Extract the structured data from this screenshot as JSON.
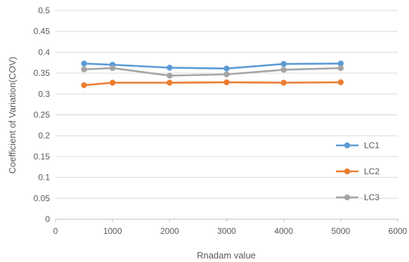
{
  "chart_data": {
    "type": "scatter",
    "title": "",
    "xlabel": "Rnadam value",
    "ylabel": "Coefficient of Variation(COV)",
    "xlim": [
      0,
      6000
    ],
    "ylim": [
      0,
      0.5
    ],
    "x_ticks": [
      "0",
      "1000",
      "2000",
      "3000",
      "4000",
      "5000",
      "6000"
    ],
    "y_ticks": [
      "0",
      "0.05",
      "0.1",
      "0.15",
      "0.2",
      "0.25",
      "0.3",
      "0.35",
      "0.4",
      "0.45",
      "0.5"
    ],
    "grid": "horizontal",
    "legend_position": "right",
    "series": [
      {
        "name": "LC1",
        "color": "#5b9bd5",
        "x": [
          500,
          1000,
          2000,
          3000,
          4000,
          5000
        ],
        "y": [
          0.373,
          0.37,
          0.363,
          0.361,
          0.372,
          0.373
        ]
      },
      {
        "name": "LC2",
        "color": "#ed7d31",
        "x": [
          500,
          1000,
          2000,
          3000,
          4000,
          5000
        ],
        "y": [
          0.321,
          0.327,
          0.327,
          0.328,
          0.327,
          0.328
        ]
      },
      {
        "name": "LC3",
        "color": "#a5a5a5",
        "x": [
          500,
          1000,
          2000,
          3000,
          4000,
          5000
        ],
        "y": [
          0.359,
          0.362,
          0.344,
          0.347,
          0.358,
          0.362
        ]
      }
    ]
  }
}
